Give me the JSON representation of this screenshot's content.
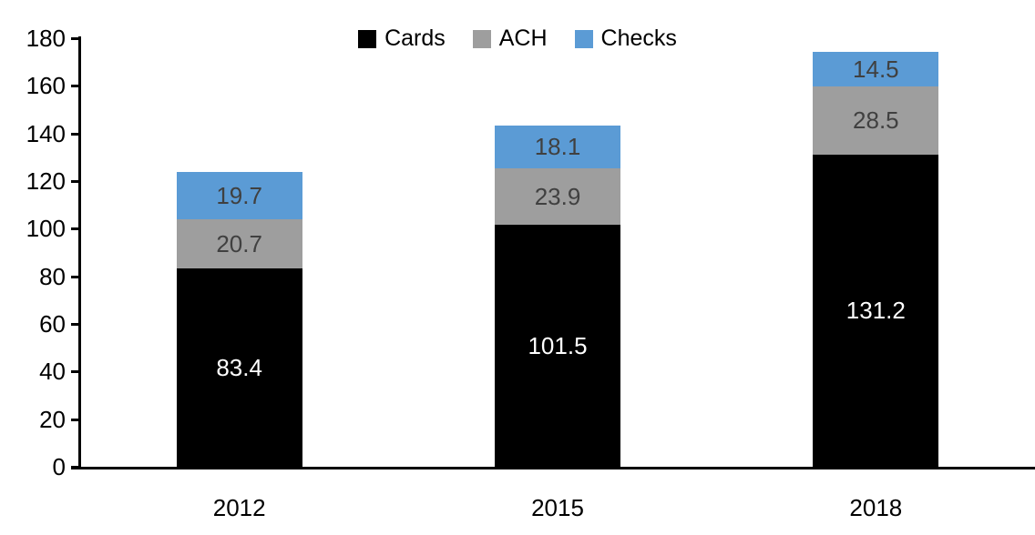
{
  "chart_data": {
    "type": "bar",
    "stacked": true,
    "title": "",
    "xlabel": "",
    "ylabel": "",
    "categories": [
      "2012",
      "2015",
      "2018"
    ],
    "series": [
      {
        "name": "Cards",
        "color": "#000000",
        "label_color": "#ffffff",
        "values": [
          83.4,
          101.5,
          131.2
        ]
      },
      {
        "name": "ACH",
        "color": "#9e9e9e",
        "label_color": "#404040",
        "values": [
          20.7,
          23.9,
          28.5
        ]
      },
      {
        "name": "Checks",
        "color": "#5b9bd5",
        "label_color": "#404040",
        "values": [
          19.7,
          18.1,
          14.5
        ]
      }
    ],
    "ylim": [
      0,
      180
    ],
    "yticks": [
      0,
      20,
      40,
      60,
      80,
      100,
      120,
      140,
      160,
      180
    ],
    "grid": false,
    "legend_position": "top-center",
    "axis_color": "#000000"
  }
}
